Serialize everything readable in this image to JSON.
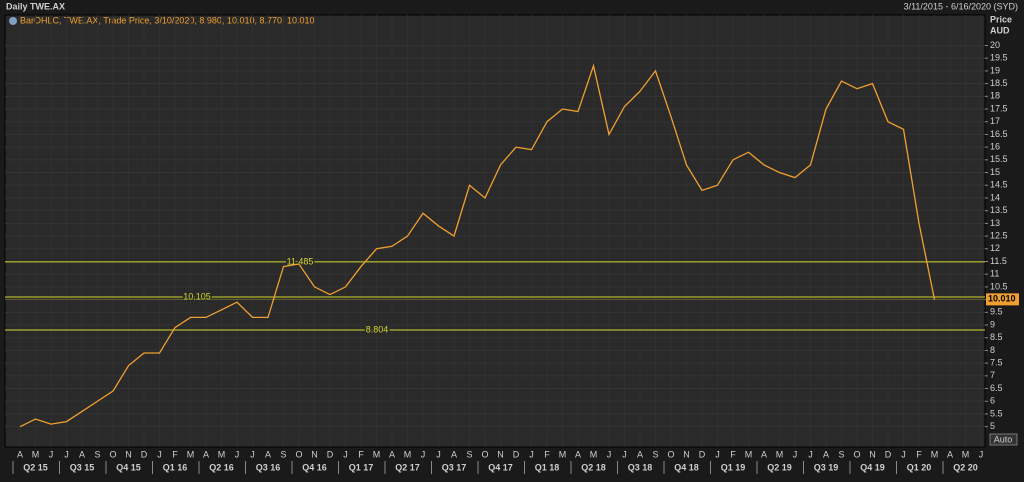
{
  "chart_data": {
    "type": "line",
    "title": "Daily TWE.AX",
    "date_range": "3/11/2015 - 6/16/2020 (SYD)",
    "legend_text": "BarOHLC, TWE.AX, Trade Price, 3/10/2020, 8.980, 10.010, 8.770, 10.010",
    "y_axis_label": "Price",
    "y_axis_unit": "AUD",
    "scale_button": "Auto",
    "categories": [
      "A",
      "M",
      "J",
      "J",
      "A",
      "S",
      "O",
      "N",
      "D",
      "J",
      "F",
      "M",
      "A",
      "M",
      "J",
      "J",
      "A",
      "S",
      "O",
      "N",
      "D",
      "J",
      "F",
      "M",
      "A",
      "M",
      "J",
      "J",
      "A",
      "S",
      "O",
      "N",
      "D",
      "J",
      "F",
      "M",
      "A",
      "M",
      "J",
      "J",
      "A",
      "S",
      "O",
      "N",
      "D",
      "J",
      "F",
      "M",
      "A",
      "M",
      "J",
      "J",
      "A",
      "S",
      "O",
      "N",
      "D",
      "J",
      "F",
      "M",
      "A",
      "M",
      "J"
    ],
    "quarters": [
      "Q2 15",
      "Q3 15",
      "Q4 15",
      "Q1 16",
      "Q2 16",
      "Q3 16",
      "Q4 16",
      "Q1 17",
      "Q2 17",
      "Q3 17",
      "Q4 17",
      "Q1 18",
      "Q2 18",
      "Q3 18",
      "Q4 18",
      "Q1 19",
      "Q2 19",
      "Q3 19",
      "Q4 19",
      "Q1 20",
      "Q2 20"
    ],
    "series": [
      {
        "name": "TWE.AX",
        "color": "#f0a030",
        "values": [
          5.0,
          5.3,
          5.1,
          5.2,
          5.6,
          6.0,
          6.4,
          7.4,
          7.9,
          7.9,
          8.9,
          9.3,
          9.3,
          9.6,
          9.9,
          9.3,
          9.3,
          11.3,
          11.4,
          10.5,
          10.2,
          10.5,
          11.3,
          12.0,
          12.1,
          12.5,
          13.4,
          12.9,
          12.5,
          14.5,
          14.0,
          15.3,
          16.0,
          15.9,
          17.0,
          17.5,
          17.4,
          19.2,
          16.5,
          17.6,
          18.2,
          19.0,
          17.2,
          15.3,
          14.3,
          14.5,
          15.5,
          15.8,
          15.3,
          15.0,
          14.8,
          15.3,
          17.5,
          18.6,
          18.3,
          18.5,
          17.0,
          16.7,
          13.0,
          10.0,
          null,
          null,
          null
        ]
      }
    ],
    "levels": [
      11.485,
      10.105,
      8.804
    ],
    "level_color": "#d6d62a",
    "last_price": {
      "value": 10.01,
      "label": "10.010"
    },
    "ylim": [
      4.2,
      21.2
    ],
    "yticks": [
      5,
      5.5,
      6,
      6.5,
      7,
      7.5,
      8,
      8.5,
      9,
      9.5,
      10,
      10.5,
      11,
      11.5,
      12,
      12.5,
      13,
      13.5,
      14,
      14.5,
      15,
      15.5,
      16,
      16.5,
      17,
      17.5,
      18,
      18.5,
      19,
      19.5,
      20
    ],
    "grid": true
  }
}
